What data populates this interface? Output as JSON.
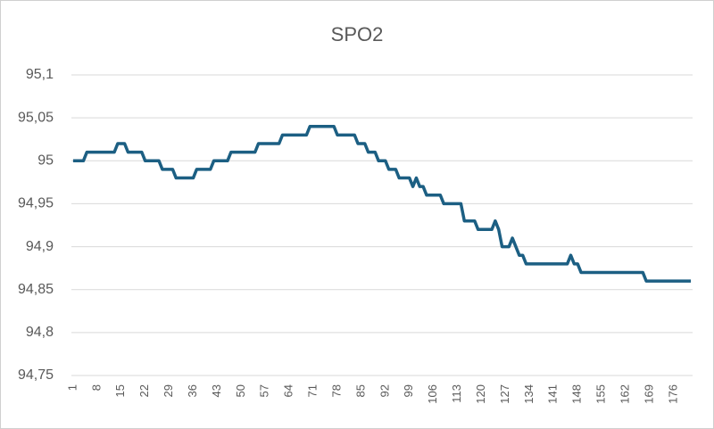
{
  "chart_data": {
    "type": "line",
    "title": "SPO2",
    "categories": [
      1,
      null,
      null,
      null,
      null,
      null,
      null,
      8,
      null,
      null,
      null,
      null,
      null,
      null,
      15,
      null,
      null,
      null,
      null,
      null,
      null,
      22,
      null,
      null,
      null,
      null,
      null,
      null,
      29,
      null,
      null,
      null,
      null,
      null,
      null,
      36,
      null,
      null,
      null,
      null,
      null,
      null,
      43,
      null,
      null,
      null,
      null,
      null,
      null,
      50,
      null,
      null,
      null,
      null,
      null,
      null,
      57,
      null,
      null,
      null,
      null,
      null,
      null,
      64,
      null,
      null,
      null,
      null,
      null,
      null,
      71,
      null,
      null,
      null,
      null,
      null,
      null,
      78,
      null,
      null,
      null,
      null,
      null,
      null,
      85,
      null,
      null,
      null,
      null,
      null,
      null,
      92,
      null,
      null,
      null,
      null,
      null,
      null,
      99,
      null,
      null,
      null,
      null,
      null,
      null,
      106,
      null,
      null,
      null,
      null,
      null,
      null,
      113,
      null,
      null,
      null,
      null,
      null,
      null,
      120,
      null,
      null,
      null,
      null,
      null,
      null,
      127,
      null,
      null,
      null,
      null,
      null,
      null,
      134,
      null,
      null,
      null,
      null,
      null,
      null,
      141,
      null,
      null,
      null,
      null,
      null,
      null,
      148,
      null,
      null,
      null,
      null,
      null,
      null,
      155,
      null,
      null,
      null,
      null,
      null,
      null,
      162,
      null,
      null,
      null,
      null,
      null,
      null,
      169,
      null,
      null,
      null,
      null,
      null,
      null,
      176,
      null,
      null,
      null,
      null,
      null
    ],
    "series": [
      {
        "color": "#1c5f83",
        "values": [
          95,
          95,
          95,
          95,
          95.01,
          95.01,
          95.01,
          95.01,
          95.01,
          95.01,
          95.01,
          95.01,
          95.01,
          95.02,
          95.02,
          95.02,
          95.01,
          95.01,
          95.01,
          95.01,
          95.01,
          95,
          95,
          95,
          95,
          95,
          94.99,
          94.99,
          94.99,
          94.99,
          94.98,
          94.98,
          94.98,
          94.98,
          94.98,
          94.98,
          94.99,
          94.99,
          94.99,
          94.99,
          94.99,
          95,
          95,
          95,
          95,
          95,
          95.01,
          95.01,
          95.01,
          95.01,
          95.01,
          95.01,
          95.01,
          95.01,
          95.02,
          95.02,
          95.02,
          95.02,
          95.02,
          95.02,
          95.02,
          95.03,
          95.03,
          95.03,
          95.03,
          95.03,
          95.03,
          95.03,
          95.03,
          95.04,
          95.04,
          95.04,
          95.04,
          95.04,
          95.04,
          95.04,
          95.04,
          95.03,
          95.03,
          95.03,
          95.03,
          95.03,
          95.03,
          95.02,
          95.02,
          95.02,
          95.01,
          95.01,
          95.01,
          95,
          95,
          95,
          94.99,
          94.99,
          94.99,
          94.98,
          94.98,
          94.98,
          94.98,
          94.97,
          94.98,
          94.97,
          94.97,
          94.96,
          94.96,
          94.96,
          94.96,
          94.96,
          94.95,
          94.95,
          94.95,
          94.95,
          94.95,
          94.95,
          94.93,
          94.93,
          94.93,
          94.93,
          94.92,
          94.92,
          94.92,
          94.92,
          94.92,
          94.93,
          94.92,
          94.9,
          94.9,
          94.9,
          94.91,
          94.9,
          94.89,
          94.89,
          94.88,
          94.88,
          94.88,
          94.88,
          94.88,
          94.88,
          94.88,
          94.88,
          94.88,
          94.88,
          94.88,
          94.88,
          94.88,
          94.89,
          94.88,
          94.88,
          94.87,
          94.87,
          94.87,
          94.87,
          94.87,
          94.87,
          94.87,
          94.87,
          94.87,
          94.87,
          94.87,
          94.87,
          94.87,
          94.87,
          94.87,
          94.87,
          94.87,
          94.87,
          94.87,
          94.86,
          94.86,
          94.86,
          94.86,
          94.86,
          94.86,
          94.86,
          94.86,
          94.86,
          94.86,
          94.86,
          94.86,
          94.86,
          94.86
        ]
      }
    ],
    "ylim": [
      94.75,
      95.1
    ],
    "yticks": [
      {
        "value": 94.75,
        "label": "94,75"
      },
      {
        "value": 94.8,
        "label": "94,8"
      },
      {
        "value": 94.85,
        "label": "94,85"
      },
      {
        "value": 94.9,
        "label": "94,9"
      },
      {
        "value": 94.95,
        "label": "94,95"
      },
      95,
      {
        "value": 95.05,
        "label": "95,05"
      },
      {
        "value": 95.1,
        "label": "95,1"
      }
    ],
    "grid": true
  }
}
